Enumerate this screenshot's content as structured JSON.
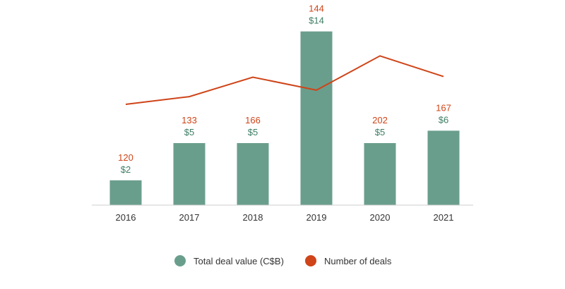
{
  "chart_data": {
    "type": "bar",
    "categories": [
      "2016",
      "2017",
      "2018",
      "2019",
      "2020",
      "2021"
    ],
    "series": [
      {
        "name": "Total deal value (C$B)",
        "kind": "bar",
        "values": [
          2,
          5,
          5,
          14,
          5,
          6
        ],
        "labels": [
          "$2",
          "$5",
          "$5",
          "$14",
          "$5",
          "$6"
        ],
        "color": "#6a9e8c",
        "label_color": "#3d7d63"
      },
      {
        "name": "Number of deals",
        "kind": "line",
        "values": [
          120,
          133,
          166,
          144,
          202,
          167
        ],
        "labels": [
          "120",
          "133",
          "166",
          "144",
          "202",
          "167"
        ],
        "color": "#cf4418",
        "label_color": "#cf4418"
      }
    ],
    "bar_axis_range": [
      0,
      14
    ],
    "line_axis_range": [
      0,
      202
    ],
    "legend_position": "bottom-center",
    "grid": false,
    "title": "",
    "xlabel": "",
    "ylabel": ""
  }
}
